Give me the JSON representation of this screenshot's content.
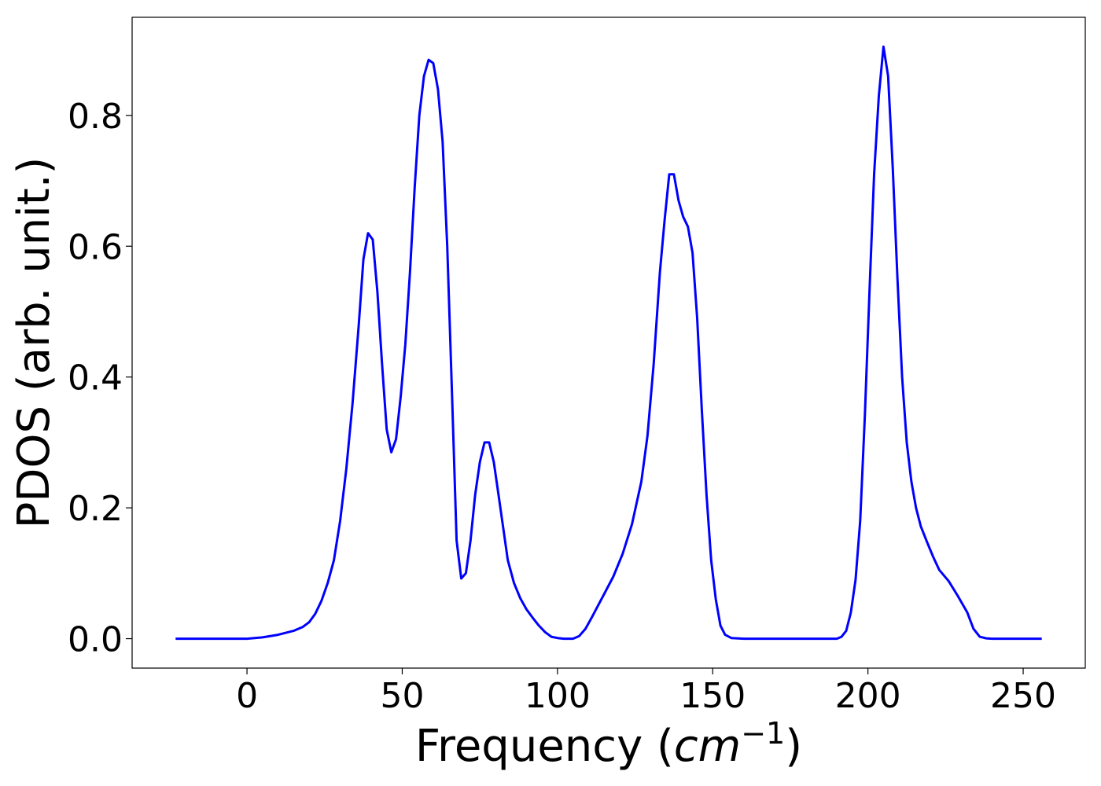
{
  "chart_data": {
    "type": "line",
    "title": "",
    "xlabel_main": "Frequency (",
    "xlabel_math": "cm",
    "xlabel_sup": "−1",
    "xlabel_close": ")",
    "ylabel": "PDOS (arb. unit.)",
    "xlim": [
      -37,
      270
    ],
    "ylim": [
      -0.045,
      0.95
    ],
    "xticks": [
      0,
      50,
      100,
      150,
      200,
      250
    ],
    "xtick_labels": [
      "0",
      "50",
      "100",
      "150",
      "200",
      "250"
    ],
    "yticks": [
      0.0,
      0.2,
      0.4,
      0.6,
      0.8
    ],
    "ytick_labels": [
      "0.0",
      "0.2",
      "0.4",
      "0.6",
      "0.8"
    ],
    "grid": false,
    "line_color": "#0000ff",
    "series": [
      {
        "x": [
          -23,
          -10,
          0,
          5,
          10,
          15,
          18,
          20,
          22,
          24,
          26,
          28,
          30,
          32,
          34,
          36,
          37.5,
          39,
          40.5,
          42,
          43.5,
          45,
          46.5,
          48,
          49.5,
          51,
          52.5,
          54,
          55.5,
          57,
          58.5,
          60,
          61.5,
          63,
          64.5,
          66,
          67.5,
          69,
          70.5,
          72,
          73.5,
          75,
          76.5,
          78,
          79.5,
          81,
          82.5,
          84,
          86,
          88,
          90,
          92,
          94,
          96,
          98,
          100,
          102,
          105,
          107,
          109,
          111,
          113,
          115,
          118,
          121,
          124,
          127,
          129,
          131,
          133,
          134.5,
          136,
          137.5,
          139,
          140.5,
          142,
          143.5,
          145,
          146.5,
          148,
          149.5,
          151,
          152.5,
          154,
          156,
          160,
          180,
          190,
          191.5,
          193,
          194.5,
          196,
          197.5,
          199,
          200.5,
          202,
          203.5,
          205,
          206.5,
          208,
          209.5,
          211,
          212.5,
          214,
          215.5,
          217,
          219,
          221,
          223,
          226,
          229,
          232,
          234,
          236,
          238,
          240,
          256
        ],
        "y": [
          0,
          0,
          0,
          0.002,
          0.006,
          0.012,
          0.018,
          0.025,
          0.038,
          0.058,
          0.085,
          0.12,
          0.18,
          0.26,
          0.36,
          0.48,
          0.58,
          0.62,
          0.61,
          0.53,
          0.42,
          0.32,
          0.285,
          0.305,
          0.37,
          0.45,
          0.56,
          0.69,
          0.8,
          0.86,
          0.885,
          0.88,
          0.84,
          0.76,
          0.6,
          0.38,
          0.15,
          0.092,
          0.1,
          0.15,
          0.22,
          0.27,
          0.3,
          0.3,
          0.27,
          0.22,
          0.17,
          0.12,
          0.085,
          0.062,
          0.045,
          0.032,
          0.02,
          0.01,
          0.003,
          0.001,
          0,
          0,
          0.004,
          0.015,
          0.032,
          0.05,
          0.068,
          0.095,
          0.13,
          0.175,
          0.24,
          0.31,
          0.42,
          0.56,
          0.64,
          0.71,
          0.71,
          0.67,
          0.645,
          0.63,
          0.59,
          0.49,
          0.35,
          0.22,
          0.12,
          0.06,
          0.02,
          0.006,
          0.001,
          0,
          0,
          0,
          0.003,
          0.012,
          0.04,
          0.09,
          0.18,
          0.34,
          0.53,
          0.71,
          0.83,
          0.905,
          0.86,
          0.72,
          0.55,
          0.4,
          0.3,
          0.24,
          0.2,
          0.172,
          0.148,
          0.125,
          0.105,
          0.088,
          0.065,
          0.04,
          0.015,
          0.003,
          0.0005,
          0,
          0
        ]
      }
    ]
  }
}
